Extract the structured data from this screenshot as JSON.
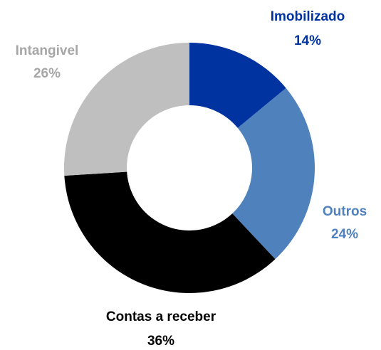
{
  "chart_data": {
    "type": "donut",
    "categories": [
      "Imobilizado",
      "Outros",
      "Contas a receber",
      "Intangivel"
    ],
    "values": [
      14,
      24,
      36,
      26
    ],
    "value_labels": [
      "14%",
      "24%",
      "36%",
      "26%"
    ],
    "colors": [
      "#0033a0",
      "#4f81bd",
      "#000000",
      "#bfbfbf"
    ]
  }
}
